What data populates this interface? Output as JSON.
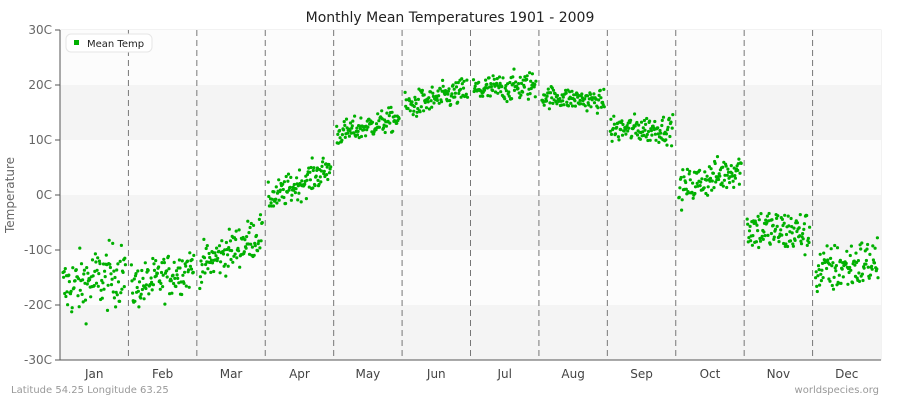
{
  "chart_data": {
    "type": "scatter",
    "title": "Monthly Mean Temperatures 1901 - 2009",
    "xlabel": "",
    "ylabel": "Temperature",
    "ylim": [
      -30,
      30
    ],
    "yticks": [
      "-30C",
      "-20C",
      "-10C",
      "0C",
      "10C",
      "20C",
      "30C"
    ],
    "ytick_values": [
      -30,
      -20,
      -10,
      0,
      10,
      20,
      30
    ],
    "categories": [
      "Jan",
      "Feb",
      "Mar",
      "Apr",
      "May",
      "Jun",
      "Jul",
      "Aug",
      "Sep",
      "Oct",
      "Nov",
      "Dec"
    ],
    "legend": {
      "position": "top-left",
      "entries": [
        "Mean Temp"
      ]
    },
    "grid": {
      "horizontal_bands": true,
      "vertical_dashed_month_separators": true
    },
    "series": [
      {
        "name": "Mean Temp",
        "color": "#00b000",
        "years": "1901-2009",
        "monthly_summary": [
          {
            "month": "Jan",
            "mean": -16,
            "min": -27.5,
            "max": -6.5,
            "start": -17,
            "end": -14
          },
          {
            "month": "Feb",
            "mean": -16,
            "min": -25,
            "max": -10.5,
            "start": -17,
            "end": -13
          },
          {
            "month": "Mar",
            "mean": -10,
            "min": -17,
            "max": -3.5,
            "start": -13,
            "end": -7
          },
          {
            "month": "Apr",
            "mean": 3,
            "min": -2,
            "max": 8,
            "start": -1,
            "end": 5
          },
          {
            "month": "May",
            "mean": 12,
            "min": 8,
            "max": 16,
            "start": 11,
            "end": 14
          },
          {
            "month": "Jun",
            "mean": 17.5,
            "min": 13.5,
            "max": 22.5,
            "start": 16,
            "end": 19
          },
          {
            "month": "Jul",
            "mean": 19.5,
            "min": 15.5,
            "max": 25,
            "start": 19,
            "end": 20
          },
          {
            "month": "Aug",
            "mean": 17.5,
            "min": 14.5,
            "max": 21.5,
            "start": 18,
            "end": 17
          },
          {
            "month": "Sep",
            "mean": 11.5,
            "min": 7.5,
            "max": 16.5,
            "start": 12,
            "end": 12
          },
          {
            "month": "Oct",
            "mean": 3,
            "min": -3,
            "max": 8.5,
            "start": 1,
            "end": 5
          },
          {
            "month": "Nov",
            "mean": -7,
            "min": -14,
            "max": 0.5,
            "start": -6,
            "end": -7
          },
          {
            "month": "Dec",
            "mean": -14,
            "min": -23,
            "max": -6.5,
            "start": -14,
            "end": -12
          }
        ]
      }
    ]
  },
  "footer": {
    "location": "Latitude 54.25 Longitude 63.25",
    "source": "worldspecies.org"
  }
}
